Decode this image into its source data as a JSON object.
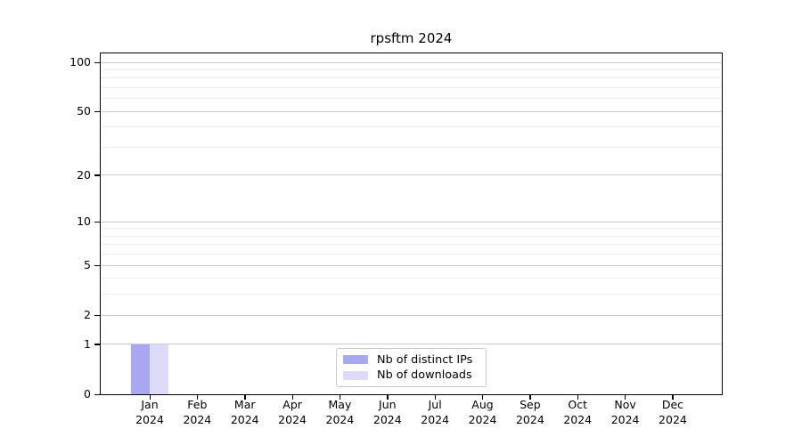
{
  "chart_data": {
    "type": "bar",
    "title": "rpsftm 2024",
    "categories": [
      "Jan 2024",
      "Feb 2024",
      "Mar 2024",
      "Apr 2024",
      "May 2024",
      "Jun 2024",
      "Jul 2024",
      "Aug 2024",
      "Sep 2024",
      "Oct 2024",
      "Nov 2024",
      "Dec 2024"
    ],
    "series": [
      {
        "name": "Nb of distinct IPs",
        "color": "#a7a7f2",
        "values": [
          1,
          0,
          0,
          0,
          0,
          0,
          0,
          0,
          0,
          0,
          0,
          0
        ]
      },
      {
        "name": "Nb of downloads",
        "color": "#dcdcf8",
        "values": [
          1,
          0,
          0,
          0,
          0,
          0,
          0,
          0,
          0,
          0,
          0,
          0
        ]
      }
    ],
    "xlabel": "",
    "ylabel": "",
    "yscale": "log1p",
    "ylim": [
      0,
      114
    ],
    "yticks": [
      0,
      1,
      2,
      5,
      10,
      20,
      50,
      100
    ],
    "yticks_minor": [
      3,
      4,
      6,
      7,
      8,
      9,
      30,
      40,
      60,
      70,
      80,
      90
    ],
    "grid": true,
    "legend_position": "lower center"
  },
  "colors": {
    "grid_major": "#cccccc",
    "grid_minor": "#ededed",
    "axis": "#000000",
    "background": "#ffffff",
    "legend_border": "#c9c9c9"
  }
}
